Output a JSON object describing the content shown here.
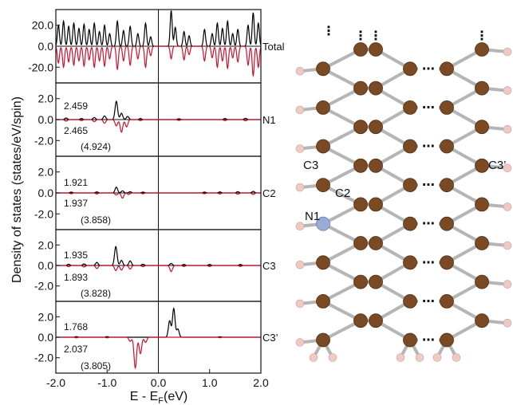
{
  "chart_data": {
    "type": "line",
    "ylabel": "Density of states (states/eV/spin)",
    "xlabel": "E - E",
    "xlabel_sub": "F",
    "xlabel_unit": "(eV)",
    "xlim": [
      -2.0,
      2.0
    ],
    "xticks": [
      "-2.0",
      "-1.0",
      "0.0",
      "1.0",
      "2.0"
    ],
    "fermi_level": 0.0,
    "colors": {
      "spin_up": "#000000",
      "spin_down": "#d0102c"
    },
    "panels": [
      {
        "label": "Total",
        "ylim": [
          -35,
          35
        ],
        "yticks": [
          20.0,
          0.0,
          -20.0
        ],
        "ytick_labels": [
          "20.0",
          "0.0",
          "-20.0"
        ],
        "spin_up_peaks": [
          [
            -1.95,
            20
          ],
          [
            -1.85,
            24
          ],
          [
            -1.75,
            19
          ],
          [
            -1.65,
            22
          ],
          [
            -1.55,
            17
          ],
          [
            -1.45,
            21
          ],
          [
            -1.35,
            16
          ],
          [
            -1.25,
            22
          ],
          [
            -1.15,
            14
          ],
          [
            -1.05,
            20
          ],
          [
            -0.95,
            12
          ],
          [
            -0.8,
            24
          ],
          [
            -0.68,
            15
          ],
          [
            -0.55,
            19
          ],
          [
            -0.4,
            12
          ],
          [
            -0.25,
            22
          ],
          [
            -0.15,
            9
          ],
          [
            0.25,
            34
          ],
          [
            0.33,
            18
          ],
          [
            0.5,
            14
          ],
          [
            0.6,
            10
          ],
          [
            0.9,
            16
          ],
          [
            1.05,
            12
          ],
          [
            1.15,
            22
          ],
          [
            1.25,
            17
          ],
          [
            1.35,
            24
          ],
          [
            1.45,
            12
          ],
          [
            1.55,
            16
          ],
          [
            1.75,
            20
          ],
          [
            1.85,
            32
          ],
          [
            1.95,
            22
          ]
        ],
        "spin_down_peaks": [
          [
            -1.95,
            -16
          ],
          [
            -1.85,
            -20
          ],
          [
            -1.75,
            -15
          ],
          [
            -1.65,
            -18
          ],
          [
            -1.55,
            -14
          ],
          [
            -1.45,
            -19
          ],
          [
            -1.35,
            -13
          ],
          [
            -1.25,
            -20
          ],
          [
            -1.15,
            -14
          ],
          [
            -1.05,
            -19
          ],
          [
            -0.95,
            -12
          ],
          [
            -0.8,
            -22
          ],
          [
            -0.68,
            -14
          ],
          [
            -0.55,
            -18
          ],
          [
            -0.4,
            -12
          ],
          [
            -0.25,
            -20
          ],
          [
            -0.15,
            -9
          ],
          [
            0.25,
            -12
          ],
          [
            0.5,
            -13
          ],
          [
            0.6,
            -8
          ],
          [
            0.9,
            -14
          ],
          [
            1.05,
            -11
          ],
          [
            1.15,
            -20
          ],
          [
            1.25,
            -14
          ],
          [
            1.35,
            -21
          ],
          [
            1.45,
            -11
          ],
          [
            1.55,
            -15
          ],
          [
            1.75,
            -18
          ],
          [
            1.85,
            -28
          ],
          [
            1.95,
            -20
          ]
        ]
      },
      {
        "label": "N1",
        "ylim": [
          -3.5,
          3.5
        ],
        "yticks": [
          2.0,
          0.0,
          -2.0
        ],
        "ytick_labels": [
          "2.0",
          "0.0",
          "-2.0"
        ],
        "annot_up": "2.459",
        "annot_down": "2.465",
        "annot_total": "(4.924)",
        "spin_up_peaks": [
          [
            -1.8,
            0.15
          ],
          [
            -1.5,
            0.1
          ],
          [
            -1.25,
            0.2
          ],
          [
            -1.05,
            0.35
          ],
          [
            -0.82,
            1.75
          ],
          [
            -0.72,
            0.6
          ],
          [
            -0.6,
            0.3
          ],
          [
            -0.35,
            0.1
          ],
          [
            0.4,
            0.08
          ],
          [
            1.3,
            0.1
          ],
          [
            1.7,
            0.12
          ]
        ],
        "spin_down_peaks": [
          [
            -1.8,
            -0.15
          ],
          [
            -1.5,
            -0.1
          ],
          [
            -1.25,
            -0.2
          ],
          [
            -1.05,
            -0.35
          ],
          [
            -0.82,
            -0.6
          ],
          [
            -0.72,
            -1.2
          ],
          [
            -0.62,
            -0.7
          ],
          [
            -0.35,
            -0.1
          ],
          [
            0.4,
            -0.08
          ],
          [
            1.3,
            -0.1
          ],
          [
            1.7,
            -0.12
          ]
        ]
      },
      {
        "label": "C2",
        "ylim": [
          -3.5,
          3.5
        ],
        "yticks": [
          2.0,
          0.0,
          -2.0
        ],
        "ytick_labels": [
          "2.0",
          "0.0",
          "-2.0"
        ],
        "annot_up": "1.921",
        "annot_down": "1.937",
        "annot_total": "(3.858)",
        "spin_up_peaks": [
          [
            -1.7,
            0.08
          ],
          [
            -1.2,
            0.1
          ],
          [
            -0.82,
            0.55
          ],
          [
            -0.7,
            0.2
          ],
          [
            -0.55,
            0.12
          ],
          [
            -0.3,
            0.08
          ],
          [
            0.9,
            0.08
          ],
          [
            1.2,
            0.1
          ],
          [
            1.55,
            0.12
          ],
          [
            1.85,
            0.15
          ]
        ],
        "spin_down_peaks": [
          [
            -1.7,
            -0.08
          ],
          [
            -1.2,
            -0.1
          ],
          [
            -0.82,
            -0.2
          ],
          [
            -0.7,
            -0.5
          ],
          [
            -0.58,
            -0.15
          ],
          [
            -0.3,
            -0.08
          ],
          [
            0.9,
            -0.08
          ],
          [
            1.2,
            -0.1
          ],
          [
            1.55,
            -0.12
          ],
          [
            1.85,
            -0.15
          ]
        ]
      },
      {
        "label": "C3",
        "ylim": [
          -3.5,
          3.5
        ],
        "yticks": [
          2.0,
          0.0,
          -2.0
        ],
        "ytick_labels": [
          "2.0",
          "0.0",
          "-2.0"
        ],
        "annot_up": "1.935",
        "annot_down": "1.893",
        "annot_total": "(3.828)",
        "spin_up_peaks": [
          [
            -1.75,
            0.12
          ],
          [
            -1.45,
            0.15
          ],
          [
            -1.2,
            0.3
          ],
          [
            -0.83,
            1.85
          ],
          [
            -0.72,
            0.5
          ],
          [
            -0.55,
            0.45
          ],
          [
            -0.3,
            0.12
          ],
          [
            0.25,
            0.2
          ],
          [
            0.5,
            0.1
          ],
          [
            1.0,
            0.1
          ],
          [
            1.6,
            0.1
          ]
        ],
        "spin_down_peaks": [
          [
            -1.75,
            -0.12
          ],
          [
            -1.45,
            -0.15
          ],
          [
            -1.2,
            -0.3
          ],
          [
            -0.83,
            -0.5
          ],
          [
            -0.72,
            -0.45
          ],
          [
            -0.55,
            -0.35
          ],
          [
            -0.3,
            -0.12
          ],
          [
            0.25,
            -0.6
          ],
          [
            0.5,
            -0.1
          ],
          [
            1.0,
            -0.1
          ],
          [
            1.6,
            -0.1
          ]
        ]
      },
      {
        "label": "C3’",
        "ylim": [
          -3.5,
          3.5
        ],
        "yticks": [
          2.0,
          0.0,
          -2.0
        ],
        "ytick_labels": [
          "2.0",
          "0.0",
          "-2.0"
        ],
        "annot_up": "1.768",
        "annot_down": "2.037",
        "annot_total": "(3.805)",
        "spin_up_peaks": [
          [
            -1.6,
            0.06
          ],
          [
            -1.0,
            0.06
          ],
          [
            0.22,
            1.6
          ],
          [
            0.3,
            2.8
          ],
          [
            0.38,
            0.8
          ],
          [
            1.2,
            0.05
          ]
        ],
        "spin_down_peaks": [
          [
            -1.6,
            -0.06
          ],
          [
            -1.0,
            -0.06
          ],
          [
            -0.55,
            -0.4
          ],
          [
            -0.45,
            -3.0
          ],
          [
            -0.35,
            -1.6
          ],
          [
            -0.25,
            -0.5
          ],
          [
            1.2,
            -0.05
          ]
        ]
      }
    ]
  },
  "structure": {
    "labels": [
      "C3",
      "C2",
      "N1",
      "C3’"
    ],
    "ellipsis_glyph": "⋯",
    "vertical_ellipsis_glyph": "⋮",
    "colors": {
      "carbon": "#7a4a24",
      "nitrogen": "#9aabd8",
      "hydrogen": "#efc9c3",
      "bond": "#b5b5b5"
    }
  }
}
